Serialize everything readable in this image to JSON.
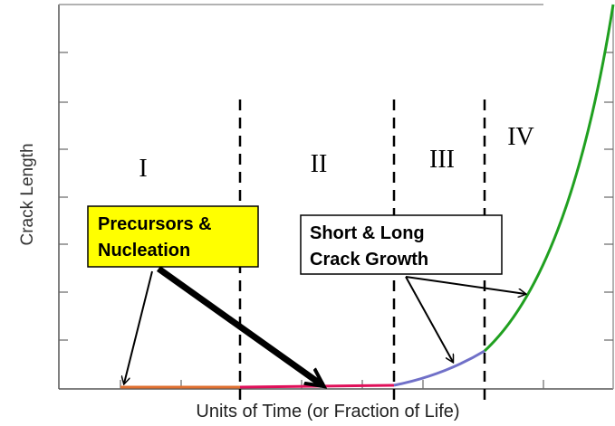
{
  "axes": {
    "x_label": "Units of Time (or Fraction of Life)",
    "y_label": "Crack Length"
  },
  "regions": [
    "I",
    "II",
    "III",
    "IV"
  ],
  "callouts": [
    {
      "lines": [
        "Precursors &",
        "Nucleation"
      ]
    },
    {
      "lines": [
        "Short & Long",
        "Crack Growth"
      ]
    }
  ]
}
